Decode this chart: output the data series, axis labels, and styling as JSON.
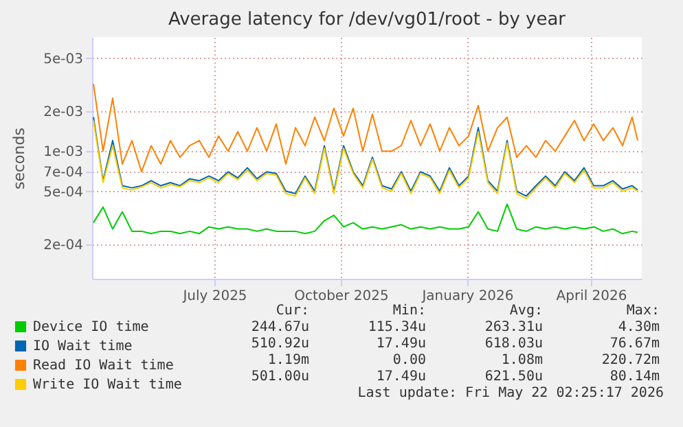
{
  "chart_data": {
    "type": "line",
    "title": "Average latency for /dev/vg01/root - by year",
    "ylabel": "seconds",
    "x": [
      "2025-04-19",
      "2025-04-26",
      "2025-05-03",
      "2025-05-10",
      "2025-05-17",
      "2025-05-24",
      "2025-05-31",
      "2025-06-07",
      "2025-06-14",
      "2025-06-21",
      "2025-06-28",
      "2025-07-05",
      "2025-07-12",
      "2025-07-19",
      "2025-07-26",
      "2025-08-02",
      "2025-08-09",
      "2025-08-16",
      "2025-08-23",
      "2025-08-30",
      "2025-09-06",
      "2025-09-13",
      "2025-09-20",
      "2025-09-27",
      "2025-10-04",
      "2025-10-11",
      "2025-10-18",
      "2025-10-25",
      "2025-11-01",
      "2025-11-08",
      "2025-11-15",
      "2025-11-22",
      "2025-11-29",
      "2025-12-06",
      "2025-12-13",
      "2025-12-20",
      "2025-12-27",
      "2026-01-03",
      "2026-01-10",
      "2026-01-17",
      "2026-01-24",
      "2026-01-31",
      "2026-02-07",
      "2026-02-14",
      "2026-02-21",
      "2026-02-28",
      "2026-03-07",
      "2026-03-14",
      "2026-03-21",
      "2026-03-28",
      "2026-04-04",
      "2026-04-11",
      "2026-04-18",
      "2026-04-25",
      "2026-05-02",
      "2026-05-09",
      "2026-05-16",
      "2026-05-20"
    ],
    "series": [
      {
        "name": "Device IO time",
        "color": "#00cc00",
        "values": [
          0.00029,
          0.00038,
          0.00026,
          0.00035,
          0.00025,
          0.00025,
          0.00024,
          0.00025,
          0.00025,
          0.00024,
          0.00025,
          0.00024,
          0.00027,
          0.00026,
          0.00027,
          0.00026,
          0.00026,
          0.00025,
          0.00026,
          0.00025,
          0.00025,
          0.00025,
          0.00024,
          0.00025,
          0.0003,
          0.00033,
          0.00027,
          0.00029,
          0.00026,
          0.00027,
          0.00026,
          0.00027,
          0.00028,
          0.00026,
          0.00027,
          0.00026,
          0.00027,
          0.00026,
          0.00026,
          0.00027,
          0.00035,
          0.00026,
          0.00025,
          0.0004,
          0.00026,
          0.00025,
          0.00027,
          0.00026,
          0.00027,
          0.00026,
          0.00027,
          0.00026,
          0.00027,
          0.00025,
          0.00026,
          0.00024,
          0.00025,
          0.000245
        ]
      },
      {
        "name": "IO Wait time",
        "color": "#0066b3",
        "values": [
          0.0018,
          0.0006,
          0.0012,
          0.00055,
          0.00053,
          0.00055,
          0.0006,
          0.00055,
          0.00058,
          0.00055,
          0.00062,
          0.0006,
          0.00065,
          0.0006,
          0.0007,
          0.00063,
          0.00075,
          0.00062,
          0.0007,
          0.00068,
          0.0005,
          0.00048,
          0.00065,
          0.0005,
          0.0011,
          0.0005,
          0.0011,
          0.0007,
          0.00055,
          0.0009,
          0.00055,
          0.00052,
          0.0007,
          0.0005,
          0.0007,
          0.00065,
          0.0005,
          0.00075,
          0.00055,
          0.00065,
          0.0015,
          0.0006,
          0.0005,
          0.0012,
          0.0005,
          0.00046,
          0.00055,
          0.00065,
          0.00055,
          0.0007,
          0.0006,
          0.00075,
          0.00055,
          0.00055,
          0.0006,
          0.00052,
          0.00055,
          0.00051
        ]
      },
      {
        "name": "Read IO Wait time",
        "color": "#ff8000",
        "values": [
          0.0032,
          0.001,
          0.0025,
          0.0008,
          0.0012,
          0.0007,
          0.0011,
          0.0008,
          0.0012,
          0.0009,
          0.0011,
          0.0012,
          0.0009,
          0.0013,
          0.001,
          0.0014,
          0.001,
          0.0015,
          0.001,
          0.0016,
          0.0008,
          0.0015,
          0.0011,
          0.0018,
          0.0012,
          0.0021,
          0.0013,
          0.0021,
          0.001,
          0.0019,
          0.001,
          0.001,
          0.0011,
          0.0017,
          0.0011,
          0.0016,
          0.001,
          0.0015,
          0.0011,
          0.0013,
          0.0022,
          0.001,
          0.0015,
          0.0018,
          0.0009,
          0.0011,
          0.0009,
          0.0012,
          0.001,
          0.0013,
          0.0017,
          0.0012,
          0.0016,
          0.0012,
          0.0015,
          0.0011,
          0.0018,
          0.0012
        ]
      },
      {
        "name": "Write IO Wait time",
        "color": "#ffcc00",
        "values": [
          0.0017,
          0.00058,
          0.0011,
          0.00053,
          0.00051,
          0.00054,
          0.00058,
          0.00053,
          0.00056,
          0.00054,
          0.0006,
          0.00058,
          0.00063,
          0.00058,
          0.00068,
          0.00061,
          0.00072,
          0.0006,
          0.00068,
          0.00066,
          0.00048,
          0.00046,
          0.00063,
          0.00048,
          0.00105,
          0.00048,
          0.00105,
          0.00068,
          0.00053,
          0.00087,
          0.00053,
          0.0005,
          0.00068,
          0.00048,
          0.00068,
          0.00063,
          0.00048,
          0.00072,
          0.00053,
          0.00063,
          0.0014,
          0.00058,
          0.00048,
          0.00115,
          0.00048,
          0.00044,
          0.00053,
          0.00063,
          0.00053,
          0.00068,
          0.00058,
          0.00072,
          0.00053,
          0.00053,
          0.00058,
          0.0005,
          0.00053,
          0.000501
        ]
      }
    ],
    "xlim": [
      "2025-04-18",
      "2026-05-23"
    ],
    "xticks": [
      {
        "value": "2025-07-16",
        "label": "July 2025"
      },
      {
        "value": "2025-10-16",
        "label": "October 2025"
      },
      {
        "value": "2026-01-16",
        "label": "January 2026"
      },
      {
        "value": "2026-04-16",
        "label": "April 2026"
      }
    ],
    "ylim": [
      0.00011,
      0.0072
    ],
    "yticks": [
      {
        "value": 0.0002,
        "label": "2e-04"
      },
      {
        "value": 0.0005,
        "label": "5e-04"
      },
      {
        "value": 0.0007,
        "label": "7e-04"
      },
      {
        "value": 0.001,
        "label": "1e-03"
      },
      {
        "value": 0.002,
        "label": "2e-03"
      },
      {
        "value": 0.005,
        "label": "5e-03"
      }
    ],
    "log": "y",
    "grid": true,
    "legend": "bottom",
    "line_style": "solid",
    "marker": "none",
    "annotations": [
      "Cur:",
      "Min:",
      "Avg:",
      "Max:",
      "244.67u",
      "115.34u",
      "263.31u",
      "4.30m",
      "510.92u",
      "17.49u",
      "618.03u",
      "76.67m",
      "1.19m",
      "0.00",
      "1.08m",
      "220.72m",
      "501.00u",
      "17.49u",
      "621.50u",
      "80.14m",
      "Last update: Fri May 22 02:25:17 2026"
    ]
  }
}
